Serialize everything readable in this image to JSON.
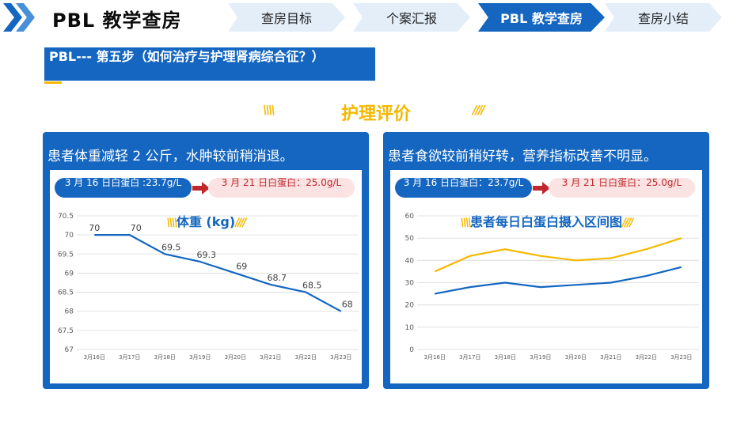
{
  "header": {
    "title": "PBL 教学查房",
    "tabs": [
      {
        "label": "查房目标",
        "active": false
      },
      {
        "label": "个案汇报",
        "active": false
      },
      {
        "label": "PBL 教学查房",
        "active": true
      },
      {
        "label": "查房小结",
        "active": false
      }
    ]
  },
  "step_banner": {
    "text": "PBL--- 第五步（如何治疗与护理肾病综合征？）"
  },
  "section": {
    "title": "护理评价",
    "deco_left": "\\\\\\\\",
    "deco_right": "////"
  },
  "colors": {
    "primary": "#1466c0",
    "accent": "#f5b800",
    "after_bg": "#fbe3e3",
    "after_text": "#c0282d"
  },
  "left_card": {
    "heading": "患者体重减轻 2 公斤，水肿较前稍消退。",
    "before": "3 月 16 日白蛋白 :23.7g/L",
    "after": "3 月 21 日白蛋白：25.0g/L"
  },
  "right_card": {
    "heading": "患者食欲较前稍好转，营养指标改善不明显。",
    "before": "3 月 16 日白蛋白：23.7g/L",
    "after": "3 月 21 日白蛋白：25.0g/L"
  },
  "chart_data": [
    {
      "type": "line",
      "title": "体重 (kg)",
      "categories": [
        "3月16日",
        "3月17日",
        "3月18日",
        "3月19日",
        "3月20日",
        "3月21日",
        "3月22日",
        "3月23日"
      ],
      "series": [
        {
          "values": [
            70,
            70,
            69.5,
            69.3,
            69,
            68.7,
            68.5,
            68
          ],
          "color": "#1466c0",
          "data_labels": [
            "70",
            "70",
            "69.5",
            "69.3",
            "69",
            "68.7",
            "68.5",
            "68"
          ]
        }
      ],
      "ylim": [
        67,
        70.5
      ],
      "yticks": [
        "67",
        "67.5",
        "68",
        "68.5",
        "69",
        "69.5",
        "70",
        "70.5"
      ],
      "grid": true
    },
    {
      "type": "line",
      "title": "患者每日白蛋白摄入区间图",
      "categories": [
        "3月16日",
        "3月17日",
        "3月18日",
        "3月19日",
        "3月20日",
        "3月21日",
        "3月22日",
        "3月23日"
      ],
      "series": [
        {
          "values": [
            35,
            42,
            45,
            42,
            40,
            41,
            45,
            50
          ],
          "color": "#f5b800"
        },
        {
          "values": [
            25,
            28,
            30,
            28,
            29,
            30,
            33,
            37
          ],
          "color": "#1466c0"
        }
      ],
      "ylim": [
        0,
        60
      ],
      "yticks": [
        "0",
        "10",
        "20",
        "30",
        "40",
        "50",
        "60"
      ],
      "grid": true
    }
  ]
}
